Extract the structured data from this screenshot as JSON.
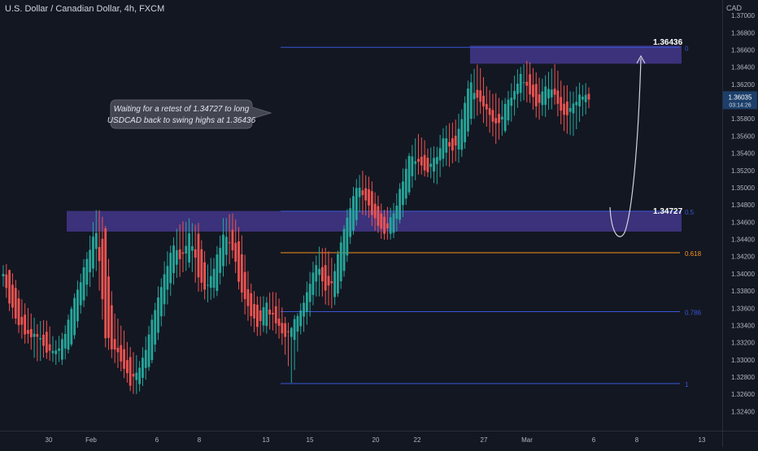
{
  "header": {
    "symbol_title": "U.S. Dollar / Canadian Dollar, 4h, FXCM",
    "currency": "CAD"
  },
  "colors": {
    "background": "#131722",
    "up": "#26a69a",
    "down": "#ef5350",
    "zone": "#4a3c99",
    "fib_blue": "#3a57d6",
    "fib_orange": "#f7931a",
    "text": "#b2b5be",
    "price_tag": "#1c3f6a"
  },
  "chart_data": {
    "type": "candlestick",
    "title": "U.S. Dollar / Canadian Dollar, 4h, FXCM",
    "ylabel": "CAD",
    "ylim": [
      1.323,
      1.371
    ],
    "y_ticks": [
      "1.37000",
      "1.36800",
      "1.36600",
      "1.36400",
      "1.36200",
      "1.36000",
      "1.35800",
      "1.35600",
      "1.35400",
      "1.35200",
      "1.35000",
      "1.34800",
      "1.34600",
      "1.34400",
      "1.34200",
      "1.34000",
      "1.33800",
      "1.33600",
      "1.33400",
      "1.33200",
      "1.33000",
      "1.32800",
      "1.32600",
      "1.32400"
    ],
    "x_ticks": [
      "30",
      "Feb",
      "6",
      "8",
      "13",
      "15",
      "20",
      "22",
      "27",
      "Mar",
      "6",
      "8",
      "13"
    ],
    "current_price": "1.36035",
    "countdown": "03:14:26",
    "grid": false,
    "candles_approx": [
      [
        1.3405,
        1.341,
        1.3385,
        1.3395
      ],
      [
        1.3395,
        1.34,
        1.3352,
        1.336
      ],
      [
        1.336,
        1.3372,
        1.333,
        1.334
      ],
      [
        1.334,
        1.3355,
        1.3318,
        1.3325
      ],
      [
        1.3325,
        1.334,
        1.33,
        1.333
      ],
      [
        1.333,
        1.3345,
        1.3305,
        1.3312
      ],
      [
        1.3312,
        1.332,
        1.3298,
        1.3305
      ],
      [
        1.3305,
        1.333,
        1.33,
        1.3322
      ],
      [
        1.3322,
        1.336,
        1.3318,
        1.3355
      ],
      [
        1.3355,
        1.3395,
        1.335,
        1.3388
      ],
      [
        1.3388,
        1.343,
        1.338,
        1.3425
      ],
      [
        1.3425,
        1.3475,
        1.341,
        1.3452
      ],
      [
        1.3452,
        1.346,
        1.332,
        1.333
      ],
      [
        1.333,
        1.335,
        1.33,
        1.3312
      ],
      [
        1.3312,
        1.3335,
        1.329,
        1.3298
      ],
      [
        1.3298,
        1.331,
        1.3265,
        1.3272
      ],
      [
        1.3272,
        1.3295,
        1.3262,
        1.3288
      ],
      [
        1.3288,
        1.333,
        1.3285,
        1.3322
      ],
      [
        1.3322,
        1.337,
        1.3318,
        1.3362
      ],
      [
        1.3362,
        1.341,
        1.3355,
        1.3402
      ],
      [
        1.3402,
        1.344,
        1.339,
        1.3432
      ],
      [
        1.3432,
        1.346,
        1.3405,
        1.3415
      ],
      [
        1.3415,
        1.346,
        1.341,
        1.3448
      ],
      [
        1.3448,
        1.3455,
        1.3385,
        1.3395
      ],
      [
        1.3395,
        1.3408,
        1.337,
        1.338
      ],
      [
        1.338,
        1.342,
        1.3375,
        1.3412
      ],
      [
        1.3412,
        1.3462,
        1.3405,
        1.3448
      ],
      [
        1.3448,
        1.347,
        1.342,
        1.343
      ],
      [
        1.343,
        1.3445,
        1.337,
        1.338
      ],
      [
        1.338,
        1.339,
        1.3345,
        1.3355
      ],
      [
        1.3355,
        1.3368,
        1.333,
        1.3342
      ],
      [
        1.3342,
        1.3372,
        1.3335,
        1.3365
      ],
      [
        1.3365,
        1.338,
        1.3338,
        1.3345
      ],
      [
        1.3345,
        1.3352,
        1.3318,
        1.3325
      ],
      [
        1.3325,
        1.3335,
        1.3275,
        1.3338
      ],
      [
        1.3338,
        1.3362,
        1.333,
        1.3356
      ],
      [
        1.3356,
        1.3392,
        1.335,
        1.3388
      ],
      [
        1.3388,
        1.3425,
        1.3382,
        1.3418
      ],
      [
        1.3418,
        1.3428,
        1.3368,
        1.3375
      ],
      [
        1.3375,
        1.3408,
        1.3362,
        1.3398
      ],
      [
        1.3398,
        1.345,
        1.3392,
        1.3445
      ],
      [
        1.3445,
        1.349,
        1.344,
        1.3482
      ],
      [
        1.3482,
        1.3515,
        1.3475,
        1.3505
      ],
      [
        1.3505,
        1.3512,
        1.3468,
        1.3478
      ],
      [
        1.3478,
        1.349,
        1.3452,
        1.346
      ],
      [
        1.346,
        1.3472,
        1.344,
        1.3448
      ],
      [
        1.3448,
        1.3478,
        1.3442,
        1.347
      ],
      [
        1.347,
        1.3515,
        1.3465,
        1.3508
      ],
      [
        1.3508,
        1.3545,
        1.35,
        1.3538
      ],
      [
        1.3538,
        1.356,
        1.352,
        1.3528
      ],
      [
        1.3528,
        1.3545,
        1.3515,
        1.3522
      ],
      [
        1.3522,
        1.3542,
        1.3505,
        1.3535
      ],
      [
        1.3535,
        1.357,
        1.3528,
        1.3562
      ],
      [
        1.3562,
        1.3575,
        1.353,
        1.354
      ],
      [
        1.354,
        1.3588,
        1.3535,
        1.358
      ],
      [
        1.358,
        1.363,
        1.3575,
        1.3622
      ],
      [
        1.3622,
        1.3645,
        1.359,
        1.36
      ],
      [
        1.36,
        1.3612,
        1.3575,
        1.3588
      ],
      [
        1.3588,
        1.3605,
        1.3555,
        1.357
      ],
      [
        1.357,
        1.3595,
        1.3565,
        1.359
      ],
      [
        1.359,
        1.362,
        1.3584,
        1.3612
      ],
      [
        1.3612,
        1.364,
        1.3605,
        1.3632
      ],
      [
        1.3632,
        1.3643,
        1.36,
        1.361
      ],
      [
        1.361,
        1.3625,
        1.358,
        1.3595
      ],
      [
        1.3595,
        1.3628,
        1.3588,
        1.362
      ],
      [
        1.362,
        1.364,
        1.3598,
        1.3605
      ],
      [
        1.3605,
        1.3618,
        1.357,
        1.358
      ],
      [
        1.358,
        1.3608,
        1.356,
        1.3598
      ],
      [
        1.3598,
        1.3622,
        1.358,
        1.3608
      ],
      [
        1.3608,
        1.3612,
        1.3595,
        1.3603
      ]
    ]
  },
  "annotations": {
    "callout_line1": "Waiting for a retest of 1.34727 to long",
    "callout_line2": "USDCAD back to swing highs at 1.36436",
    "target_label": "1.36436",
    "retest_label": "1.34727"
  },
  "fib_levels": [
    {
      "label": "0",
      "price": 1.3663,
      "color": "#3a57d6"
    },
    {
      "label": "0.5",
      "price": 1.34727,
      "color": "#3a57d6"
    },
    {
      "label": "0.618",
      "price": 1.34245,
      "color": "#f7931a"
    },
    {
      "label": "0.786",
      "price": 1.3356,
      "color": "#3a57d6"
    },
    {
      "label": "1",
      "price": 1.32725,
      "color": "#3a57d6"
    }
  ],
  "zones": [
    {
      "name": "upper-supply-zone",
      "top": 1.3665,
      "bottom": 1.3644
    },
    {
      "name": "retest-zone",
      "top": 1.3473,
      "bottom": 1.3449
    }
  ]
}
